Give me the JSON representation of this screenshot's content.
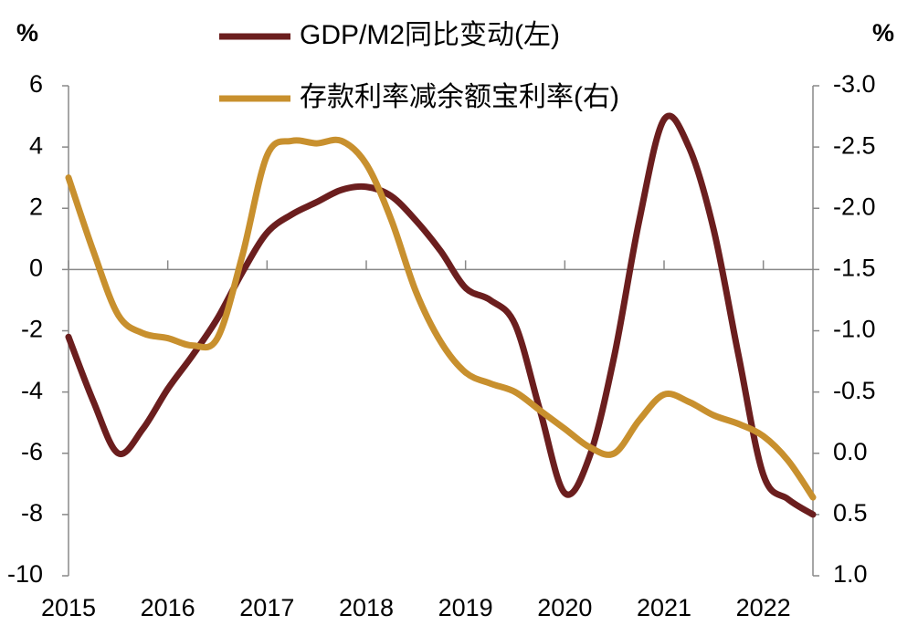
{
  "chart_data": {
    "type": "line",
    "y_unit_left": "%",
    "y_unit_right": "%",
    "x": [
      2015,
      2015.25,
      2015.5,
      2015.75,
      2016,
      2016.25,
      2016.5,
      2016.75,
      2017,
      2017.25,
      2017.5,
      2017.75,
      2018,
      2018.25,
      2018.5,
      2018.75,
      2019,
      2019.25,
      2019.5,
      2019.75,
      2020,
      2020.25,
      2020.5,
      2020.75,
      2021,
      2021.25,
      2021.5,
      2021.75,
      2022,
      2022.25,
      2022.5
    ],
    "xlim": [
      2015,
      2022.5
    ],
    "xticks": [
      2015,
      2016,
      2017,
      2018,
      2019,
      2020,
      2021,
      2022
    ],
    "ylim": [
      -10,
      6
    ],
    "yticks": [
      -10,
      -8,
      -6,
      -4,
      -2,
      0,
      2,
      4,
      6
    ],
    "y2lim": [
      {
        "value": 1,
        "label": "1.0"
      },
      {
        "value": -3,
        "label": "-3.0"
      }
    ],
    "y2ticks": [
      {
        "value": 1,
        "label": "1.0"
      },
      0.5,
      {
        "value": 0,
        "label": "0.0"
      },
      -0.5,
      {
        "value": -1,
        "label": "-1.0"
      },
      -1.5,
      {
        "value": -2,
        "label": "-2.0"
      },
      -2.5,
      {
        "value": -3,
        "label": "-3.0"
      }
    ],
    "series": [
      {
        "name": "GDP/M2同比变动(左)",
        "color": "#6b1e1e",
        "axis": "y",
        "values": [
          -2.2,
          -4.3,
          -6.0,
          -5.2,
          -3.9,
          -2.8,
          -1.6,
          -0.1,
          1.2,
          1.8,
          2.2,
          2.6,
          2.7,
          2.4,
          1.6,
          0.6,
          -0.6,
          -1.0,
          -1.8,
          -4.6,
          -7.3,
          -6.1,
          -2.8,
          1.6,
          4.9,
          4.0,
          1.3,
          -2.8,
          -6.7,
          -7.5,
          -8.0
        ]
      },
      {
        "name": "存款利率减余额宝利率(右)",
        "color": "#c8902e",
        "axis": "y2",
        "values": [
          -2.25,
          -1.65,
          -1.13,
          -0.98,
          -0.94,
          -0.88,
          -0.94,
          -1.61,
          -2.43,
          -2.55,
          -2.53,
          -2.55,
          -2.36,
          -1.91,
          -1.32,
          -0.91,
          -0.66,
          -0.57,
          -0.5,
          -0.35,
          -0.2,
          -0.05,
          0.0,
          -0.27,
          -0.48,
          -0.42,
          -0.31,
          -0.24,
          -0.14,
          0.06,
          0.36
        ]
      }
    ]
  }
}
